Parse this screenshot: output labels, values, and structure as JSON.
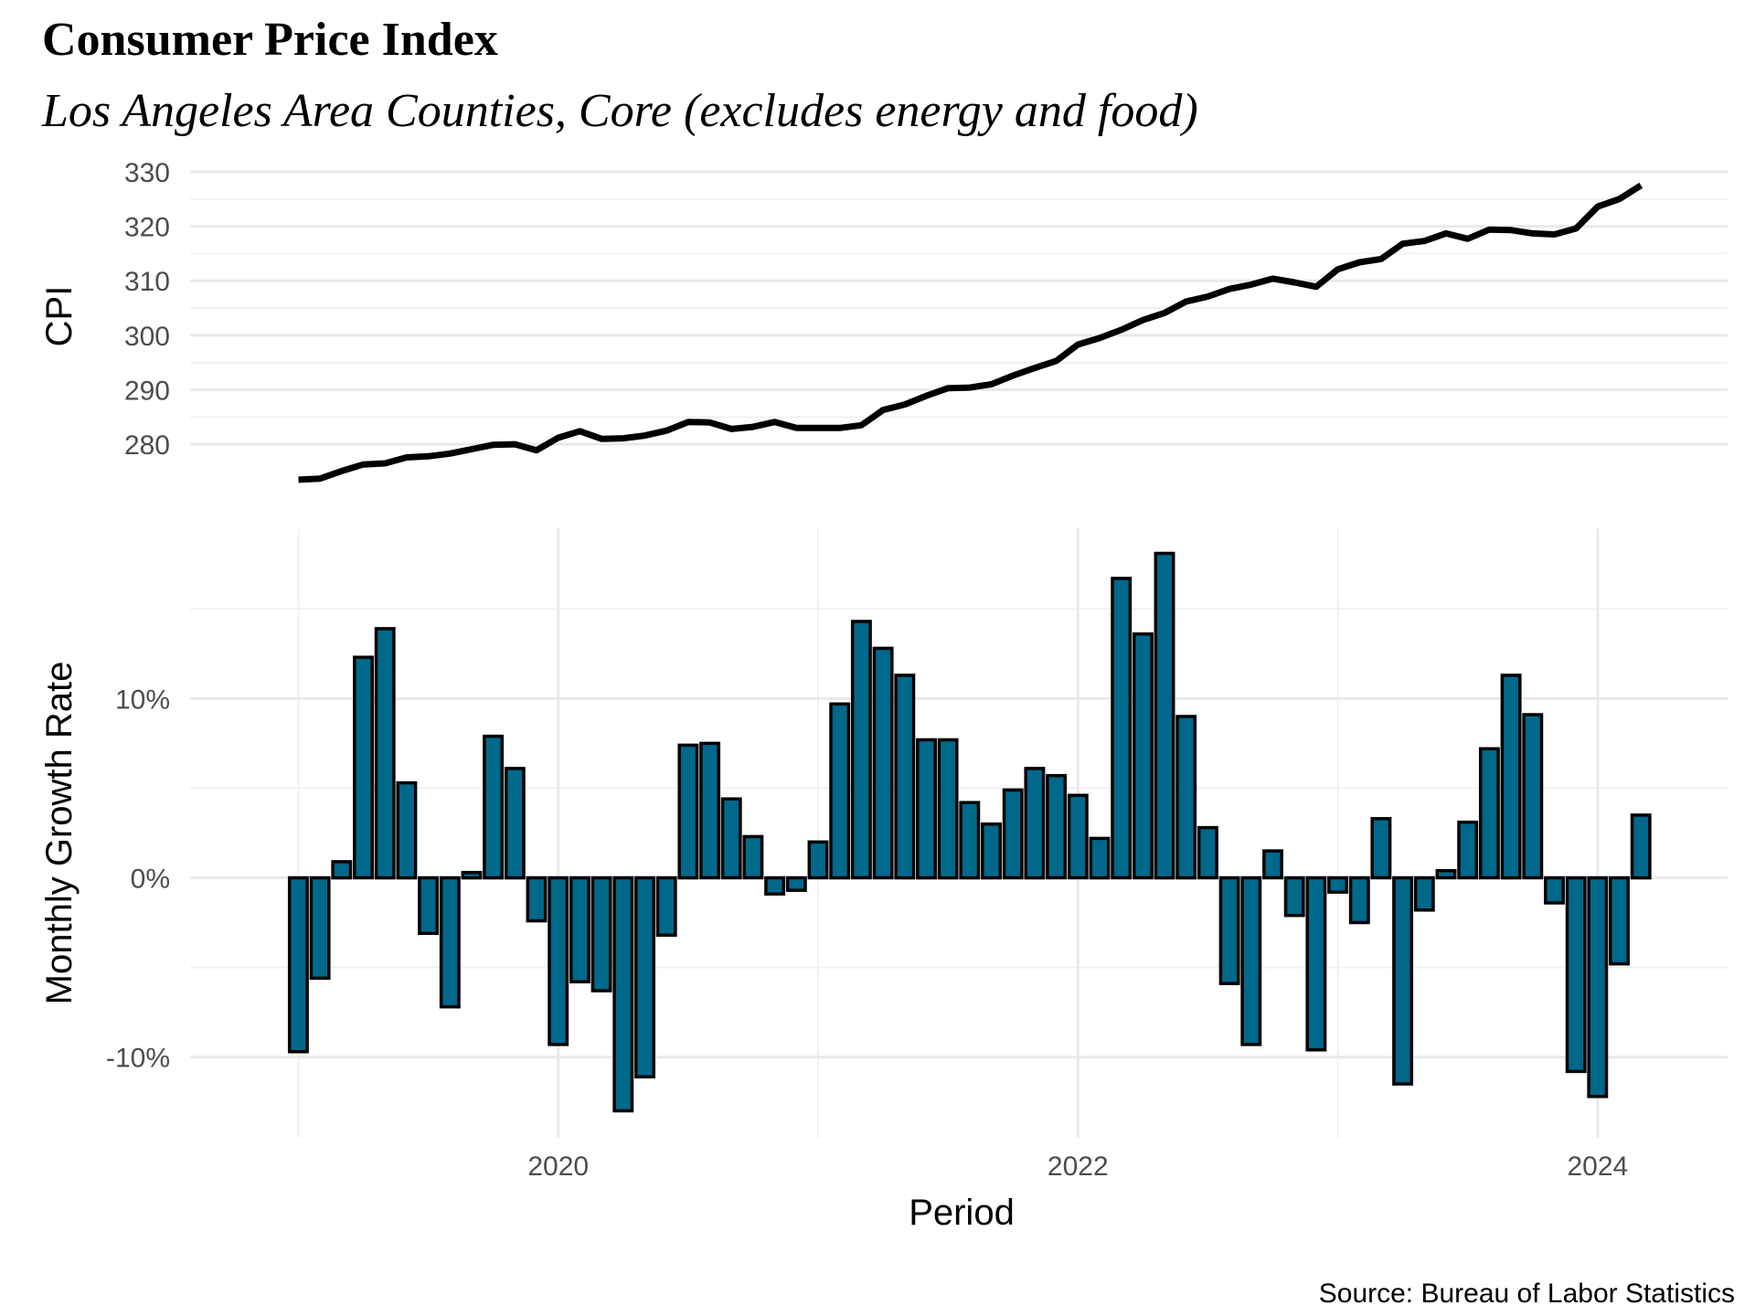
{
  "title": "Consumer Price Index",
  "subtitle": "Los Angeles Area Counties, Core (excludes energy and food)",
  "caption": "Source: Bureau of Labor Statistics",
  "colors": {
    "bar_fill": "#00688b",
    "bar_stroke": "#000000",
    "line": "#000000"
  },
  "chart_data": [
    {
      "type": "line",
      "ylabel": "CPI",
      "ylim": [
        276,
        331
      ],
      "yticks": [
        "280",
        "290",
        "300",
        "310",
        "320",
        "330"
      ],
      "grid": true,
      "x_start": "2019-01",
      "x": [
        "2019-01",
        "2019-02",
        "2019-03",
        "2019-04",
        "2019-05",
        "2019-06",
        "2019-07",
        "2019-08",
        "2019-09",
        "2019-10",
        "2019-11",
        "2019-12",
        "2020-01",
        "2020-02",
        "2020-03",
        "2020-04",
        "2020-05",
        "2020-06",
        "2020-07",
        "2020-08",
        "2020-09",
        "2020-10",
        "2020-11",
        "2020-12",
        "2021-01",
        "2021-02",
        "2021-03",
        "2021-04",
        "2021-05",
        "2021-06",
        "2021-07",
        "2021-08",
        "2021-09",
        "2021-10",
        "2021-11",
        "2021-12",
        "2022-01",
        "2022-02",
        "2022-03",
        "2022-04",
        "2022-05",
        "2022-06",
        "2022-07",
        "2022-08",
        "2022-09",
        "2022-10",
        "2022-11",
        "2022-12",
        "2023-01",
        "2023-02",
        "2023-03",
        "2023-04",
        "2023-05",
        "2023-06",
        "2023-07",
        "2023-08",
        "2023-09",
        "2023-10",
        "2023-11",
        "2023-12",
        "2024-01",
        "2024-02",
        "2024-03"
      ],
      "values": [
        273.5,
        273.7,
        275.1,
        276.3,
        276.5,
        277.6,
        277.8,
        278.3,
        279.1,
        279.9,
        280.0,
        278.9,
        281.2,
        282.4,
        281.0,
        281.1,
        281.6,
        282.5,
        284.1,
        284.0,
        282.8,
        283.2,
        284.1,
        283.0,
        283.0,
        283.0,
        283.5,
        286.3,
        287.3,
        288.9,
        290.3,
        290.4,
        291.0,
        292.6,
        294.0,
        295.3,
        298.3,
        299.5,
        301.0,
        302.8,
        304.1,
        306.2,
        307.1,
        308.5,
        309.3,
        310.4,
        309.7,
        308.9,
        312.1,
        313.4,
        314.0,
        316.8,
        317.3,
        318.7,
        317.7,
        319.4,
        319.3,
        318.7,
        318.5,
        319.6,
        323.6,
        325.0,
        327.5
      ]
    },
    {
      "type": "bar",
      "xlabel": "Period",
      "ylabel": "Monthly Growth Rate",
      "ylim": [
        -14.5,
        19.5
      ],
      "yticks": [
        {
          "v": -10,
          "label": "-10%"
        },
        {
          "v": 0,
          "label": "0%"
        },
        {
          "v": 10,
          "label": "10%"
        }
      ],
      "xticks": [
        {
          "v": "2020-01",
          "label": "2020"
        },
        {
          "v": "2022-01",
          "label": "2022"
        },
        {
          "v": "2024-01",
          "label": "2024"
        }
      ],
      "xlim": [
        "2018-08",
        "2024-07"
      ],
      "grid": true,
      "x": [
        "2019-01",
        "2019-02",
        "2019-03",
        "2019-04",
        "2019-05",
        "2019-06",
        "2019-07",
        "2019-08",
        "2019-09",
        "2019-10",
        "2019-11",
        "2019-12",
        "2020-01",
        "2020-02",
        "2020-03",
        "2020-04",
        "2020-05",
        "2020-06",
        "2020-07",
        "2020-08",
        "2020-09",
        "2020-10",
        "2020-11",
        "2020-12",
        "2021-01",
        "2021-02",
        "2021-03",
        "2021-04",
        "2021-05",
        "2021-06",
        "2021-07",
        "2021-08",
        "2021-09",
        "2021-10",
        "2021-11",
        "2021-12",
        "2022-01",
        "2022-02",
        "2022-03",
        "2022-04",
        "2022-05",
        "2022-06",
        "2022-07",
        "2022-08",
        "2022-09",
        "2022-10",
        "2022-11",
        "2022-12",
        "2023-01",
        "2023-02",
        "2023-03",
        "2023-04",
        "2023-05",
        "2023-06",
        "2023-07",
        "2023-08",
        "2023-09",
        "2023-10",
        "2023-11",
        "2023-12",
        "2024-01",
        "2024-02",
        "2024-03"
      ],
      "values": [
        -9.7,
        -5.6,
        0.9,
        12.3,
        13.9,
        5.3,
        -3.1,
        -7.2,
        0.3,
        7.9,
        6.1,
        -2.4,
        -9.3,
        -5.8,
        -6.3,
        -13.0,
        -11.1,
        -3.2,
        7.4,
        7.5,
        4.4,
        2.3,
        -0.9,
        -0.7,
        2.0,
        9.7,
        14.3,
        12.8,
        11.3,
        7.7,
        7.7,
        4.2,
        3.0,
        4.9,
        6.1,
        5.7,
        4.6,
        2.2,
        16.7,
        13.6,
        18.1,
        9.0,
        2.8,
        -5.9,
        -9.3,
        1.5,
        -2.1,
        -9.6,
        -0.8,
        -2.5,
        3.3,
        -11.5,
        -1.8,
        0.4,
        3.1,
        7.2,
        11.3,
        9.1,
        -1.4,
        -10.8,
        -12.2,
        -4.8,
        3.5
      ]
    }
  ]
}
